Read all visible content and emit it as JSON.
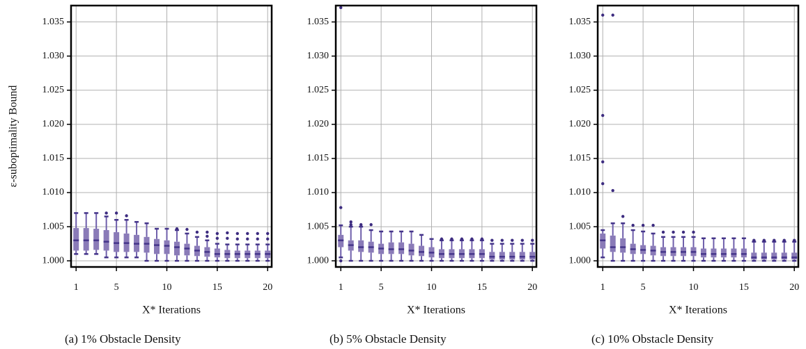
{
  "chart_data": [
    {
      "type": "box",
      "caption": "(a) 1% Obstacle Density",
      "xlabel": "X* Iterations",
      "ylabel": "ε-suboptimality Bound",
      "x": [
        1,
        2,
        3,
        4,
        5,
        6,
        7,
        8,
        9,
        10,
        11,
        12,
        13,
        14,
        15,
        16,
        17,
        18,
        19,
        20
      ],
      "boxes": [
        [
          1.001,
          1.0015,
          1.003,
          1.0048,
          1.007
        ],
        [
          1.001,
          1.0015,
          1.003,
          1.0048,
          1.007
        ],
        [
          1.001,
          1.0016,
          1.003,
          1.0047,
          1.007
        ],
        [
          1.0005,
          1.0015,
          1.0028,
          1.0045,
          1.0065
        ],
        [
          1.0005,
          1.0013,
          1.0026,
          1.0042,
          1.006
        ],
        [
          1.0005,
          1.0013,
          1.0026,
          1.004,
          1.006
        ],
        [
          1.0005,
          1.0013,
          1.0025,
          1.0038,
          1.0057
        ],
        [
          1.0,
          1.0012,
          1.0025,
          1.0035,
          1.0055
        ],
        [
          1.0,
          1.001,
          1.0023,
          1.0032,
          1.0047
        ],
        [
          1.0,
          1.001,
          1.0022,
          1.003,
          1.0047
        ],
        [
          1.0,
          1.0008,
          1.002,
          1.0028,
          1.0045
        ],
        [
          1.0,
          1.0008,
          1.0018,
          1.0025,
          1.004
        ],
        [
          1.0,
          1.0007,
          1.0015,
          1.0022,
          1.0035
        ],
        [
          1.0,
          1.0006,
          1.0013,
          1.002,
          1.003
        ],
        [
          1.0,
          1.0005,
          1.001,
          1.0018,
          1.0025
        ],
        [
          1.0,
          1.0004,
          1.001,
          1.0016,
          1.0024
        ],
        [
          1.0,
          1.0004,
          1.001,
          1.0015,
          1.0024
        ],
        [
          1.0,
          1.0004,
          1.001,
          1.0015,
          1.0024
        ],
        [
          1.0,
          1.0004,
          1.001,
          1.0015,
          1.0024
        ],
        [
          1.0,
          1.0004,
          1.001,
          1.0015,
          1.0024
        ]
      ],
      "outliers": [
        [],
        [],
        [],
        [
          1.007
        ],
        [
          1.007
        ],
        [
          1.0066
        ],
        [],
        [],
        [],
        [],
        [
          1.0047
        ],
        [
          1.0046
        ],
        [
          1.0042
        ],
        [
          1.0036,
          1.0042
        ],
        [
          1.0033,
          1.004
        ],
        [
          1.0033,
          1.0041
        ],
        [
          1.0032,
          1.004
        ],
        [
          1.0032,
          1.004
        ],
        [
          1.0032,
          1.004
        ],
        [
          1.0032,
          1.004
        ]
      ],
      "xlim": [
        0.5,
        20.4
      ],
      "xticks": [
        1,
        5,
        10,
        15,
        20
      ],
      "ylim": [
        0.9991,
        1.0374
      ],
      "yticks": [
        {
          "value": 1.0,
          "label": "1.000"
        },
        {
          "value": 1.005,
          "label": "1.005"
        },
        {
          "value": 1.01,
          "label": "1.010"
        },
        {
          "value": 1.015,
          "label": "1.015"
        },
        {
          "value": 1.02,
          "label": "1.020"
        },
        {
          "value": 1.025,
          "label": "1.025"
        },
        {
          "value": 1.03,
          "label": "1.030"
        },
        {
          "value": 1.035,
          "label": "1.035"
        }
      ],
      "grid": true,
      "box_color": "#8a7bb8",
      "median_color": "#45358a",
      "whisker_color": "#6f5fab",
      "outlier_color": "#3d2c80"
    },
    {
      "type": "box",
      "caption": "(b) 5% Obstacle Density",
      "xlabel": "X* Iterations",
      "x": [
        1,
        2,
        3,
        4,
        5,
        6,
        7,
        8,
        9,
        10,
        11,
        12,
        13,
        14,
        15,
        16,
        17,
        18,
        19,
        20
      ],
      "boxes": [
        [
          1.0005,
          1.002,
          1.003,
          1.0038,
          1.0052
        ],
        [
          1.0,
          1.0015,
          1.0023,
          1.003,
          1.005
        ],
        [
          1.0,
          1.0013,
          1.002,
          1.003,
          1.005
        ],
        [
          1.0,
          1.0012,
          1.002,
          1.0028,
          1.0045
        ],
        [
          1.0,
          1.001,
          1.0018,
          1.0025,
          1.0043
        ],
        [
          1.0,
          1.001,
          1.0017,
          1.0027,
          1.0043
        ],
        [
          1.0,
          1.001,
          1.0017,
          1.0027,
          1.0043
        ],
        [
          1.0,
          1.0008,
          1.0015,
          1.0025,
          1.0043
        ],
        [
          1.0,
          1.0007,
          1.0013,
          1.0022,
          1.0038
        ],
        [
          1.0,
          1.0005,
          1.0012,
          1.002,
          1.0032
        ],
        [
          1.0,
          1.0004,
          1.001,
          1.0017,
          1.003
        ],
        [
          1.0,
          1.0004,
          1.001,
          1.0017,
          1.003
        ],
        [
          1.0,
          1.0004,
          1.001,
          1.0017,
          1.003
        ],
        [
          1.0,
          1.0004,
          1.001,
          1.0017,
          1.003
        ],
        [
          1.0,
          1.0004,
          1.001,
          1.0017,
          1.003
        ],
        [
          1.0,
          1.0002,
          1.0006,
          1.0013,
          1.0025
        ],
        [
          1.0,
          1.0002,
          1.0006,
          1.0013,
          1.0025
        ],
        [
          1.0,
          1.0002,
          1.0006,
          1.0013,
          1.0025
        ],
        [
          1.0,
          1.0002,
          1.0006,
          1.0013,
          1.0025
        ],
        [
          1.0,
          1.0002,
          1.0006,
          1.0013,
          1.0025
        ]
      ],
      "outliers": [
        [
          1.0,
          1.0078,
          1.0371
        ],
        [
          1.0053,
          1.0057
        ],
        [
          1.0053
        ],
        [
          1.0053
        ],
        [],
        [],
        [],
        [],
        [],
        [],
        [
          1.0032
        ],
        [
          1.0032
        ],
        [
          1.0032
        ],
        [
          1.0032
        ],
        [
          1.0032
        ],
        [
          1.003
        ],
        [
          1.003
        ],
        [
          1.003
        ],
        [
          1.003
        ],
        [
          1.003
        ]
      ],
      "xlim": [
        0.5,
        20.4
      ],
      "xticks": [
        1,
        5,
        10,
        15,
        20
      ],
      "ylim": [
        0.9991,
        1.0374
      ],
      "yticks": [
        {
          "value": 1.0,
          "label": "1.000"
        },
        {
          "value": 1.005,
          "label": "1.005"
        },
        {
          "value": 1.01,
          "label": "1.010"
        },
        {
          "value": 1.015,
          "label": "1.015"
        },
        {
          "value": 1.02,
          "label": "1.020"
        },
        {
          "value": 1.025,
          "label": "1.025"
        },
        {
          "value": 1.03,
          "label": "1.030"
        },
        {
          "value": 1.035,
          "label": "1.035"
        }
      ],
      "grid": true,
      "box_color": "#8a7bb8",
      "median_color": "#45358a",
      "whisker_color": "#6f5fab",
      "outlier_color": "#3d2c80"
    },
    {
      "type": "box",
      "caption": "(c) 10% Obstacle Density",
      "xlabel": "X* Iterations",
      "x": [
        1,
        2,
        3,
        4,
        5,
        6,
        7,
        8,
        9,
        10,
        11,
        12,
        13,
        14,
        15,
        16,
        17,
        18,
        19,
        20
      ],
      "boxes": [
        [
          1.0005,
          1.0018,
          1.003,
          1.004,
          1.0045
        ],
        [
          1.0,
          1.0013,
          1.002,
          1.0037,
          1.0055
        ],
        [
          1.0,
          1.0012,
          1.002,
          1.0033,
          1.0055
        ],
        [
          1.0,
          1.001,
          1.0017,
          1.0025,
          1.0045
        ],
        [
          1.0,
          1.001,
          1.0016,
          1.0023,
          1.0043
        ],
        [
          1.0,
          1.0008,
          1.0015,
          1.0022,
          1.004
        ],
        [
          1.0,
          1.0007,
          1.0013,
          1.002,
          1.0035
        ],
        [
          1.0,
          1.0007,
          1.0013,
          1.002,
          1.0035
        ],
        [
          1.0,
          1.0007,
          1.0013,
          1.002,
          1.0035
        ],
        [
          1.0,
          1.0007,
          1.0013,
          1.002,
          1.0035
        ],
        [
          1.0,
          1.0005,
          1.001,
          1.0018,
          1.0033
        ],
        [
          1.0,
          1.0005,
          1.001,
          1.0018,
          1.0033
        ],
        [
          1.0,
          1.0005,
          1.001,
          1.0018,
          1.0033
        ],
        [
          1.0,
          1.0005,
          1.001,
          1.0018,
          1.0033
        ],
        [
          1.0,
          1.0005,
          1.001,
          1.0018,
          1.0033
        ],
        [
          1.0,
          1.0002,
          1.0005,
          1.0012,
          1.0028
        ],
        [
          1.0,
          1.0002,
          1.0005,
          1.0012,
          1.0028
        ],
        [
          1.0,
          1.0002,
          1.0005,
          1.0012,
          1.0028
        ],
        [
          1.0,
          1.0002,
          1.0005,
          1.0012,
          1.0028
        ],
        [
          1.0,
          1.0002,
          1.0005,
          1.0012,
          1.0028
        ]
      ],
      "outliers": [
        [
          1.0113,
          1.0145,
          1.0213,
          1.036
        ],
        [
          1.0103,
          1.036
        ],
        [
          1.0065
        ],
        [
          1.0052
        ],
        [
          1.0052
        ],
        [
          1.0052
        ],
        [
          1.0042
        ],
        [
          1.0042
        ],
        [
          1.0042
        ],
        [
          1.0042
        ],
        [],
        [],
        [],
        [],
        [],
        [
          1.003
        ],
        [
          1.003
        ],
        [
          1.003
        ],
        [
          1.003
        ],
        [
          1.003
        ]
      ],
      "xlim": [
        0.5,
        20.4
      ],
      "xticks": [
        1,
        5,
        10,
        15,
        20
      ],
      "ylim": [
        0.9991,
        1.0374
      ],
      "yticks": [
        {
          "value": 1.0,
          "label": "1.000"
        },
        {
          "value": 1.005,
          "label": "1.005"
        },
        {
          "value": 1.01,
          "label": "1.010"
        },
        {
          "value": 1.015,
          "label": "1.015"
        },
        {
          "value": 1.02,
          "label": "1.020"
        },
        {
          "value": 1.025,
          "label": "1.025"
        },
        {
          "value": 1.03,
          "label": "1.030"
        },
        {
          "value": 1.035,
          "label": "1.035"
        }
      ],
      "grid": true,
      "box_color": "#8a7bb8",
      "median_color": "#45358a",
      "whisker_color": "#6f5fab",
      "outlier_color": "#3d2c80"
    }
  ]
}
